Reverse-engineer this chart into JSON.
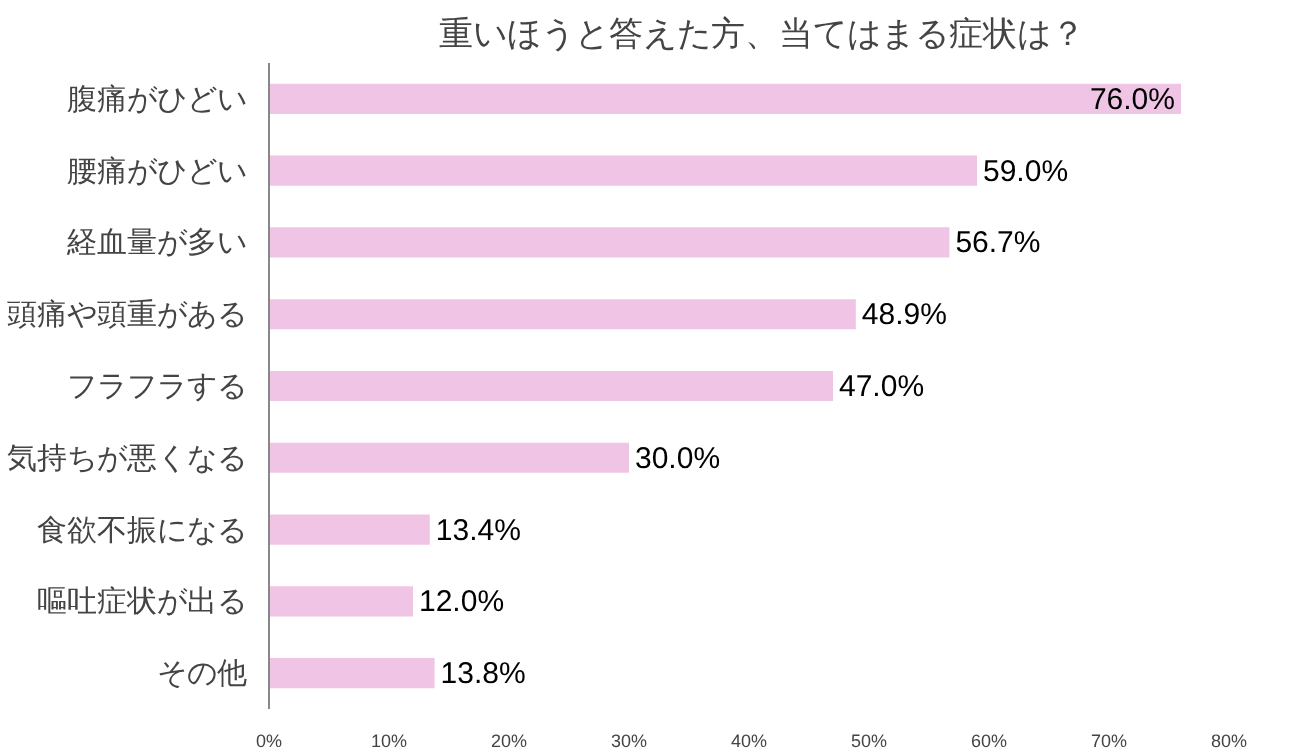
{
  "chart_data": {
    "type": "bar",
    "orientation": "horizontal",
    "title": "重いほうと答えた方、当てはまる症状は？",
    "categories": [
      "腹痛がひどい",
      "腰痛がひどい",
      "経血量が多い",
      "頭痛や頭重がある",
      "フラフラする",
      "気持ちが悪くなる",
      "食欲不振になる",
      "嘔吐症状が出る",
      "その他"
    ],
    "values": [
      76.0,
      59.0,
      56.7,
      48.9,
      47.0,
      30.0,
      13.4,
      12.0,
      13.8
    ],
    "value_labels": [
      "76.0%",
      "59.0%",
      "56.7%",
      "48.9%",
      "47.0%",
      "30.0%",
      "13.4%",
      "12.0%",
      "13.8%"
    ],
    "color": "#f0c4e4",
    "xlim": [
      0,
      80
    ],
    "xticks": [
      {
        "value": 0,
        "label": "0%"
      },
      {
        "value": 10,
        "label": "10%"
      },
      {
        "value": 20,
        "label": "20%"
      },
      {
        "value": 30,
        "label": "30%"
      },
      {
        "value": 40,
        "label": "40%"
      },
      {
        "value": 50,
        "label": "50%"
      },
      {
        "value": 60,
        "label": "60%"
      },
      {
        "value": 70,
        "label": "70%"
      },
      {
        "value": 80,
        "label": "80%"
      }
    ],
    "grid": false
  }
}
